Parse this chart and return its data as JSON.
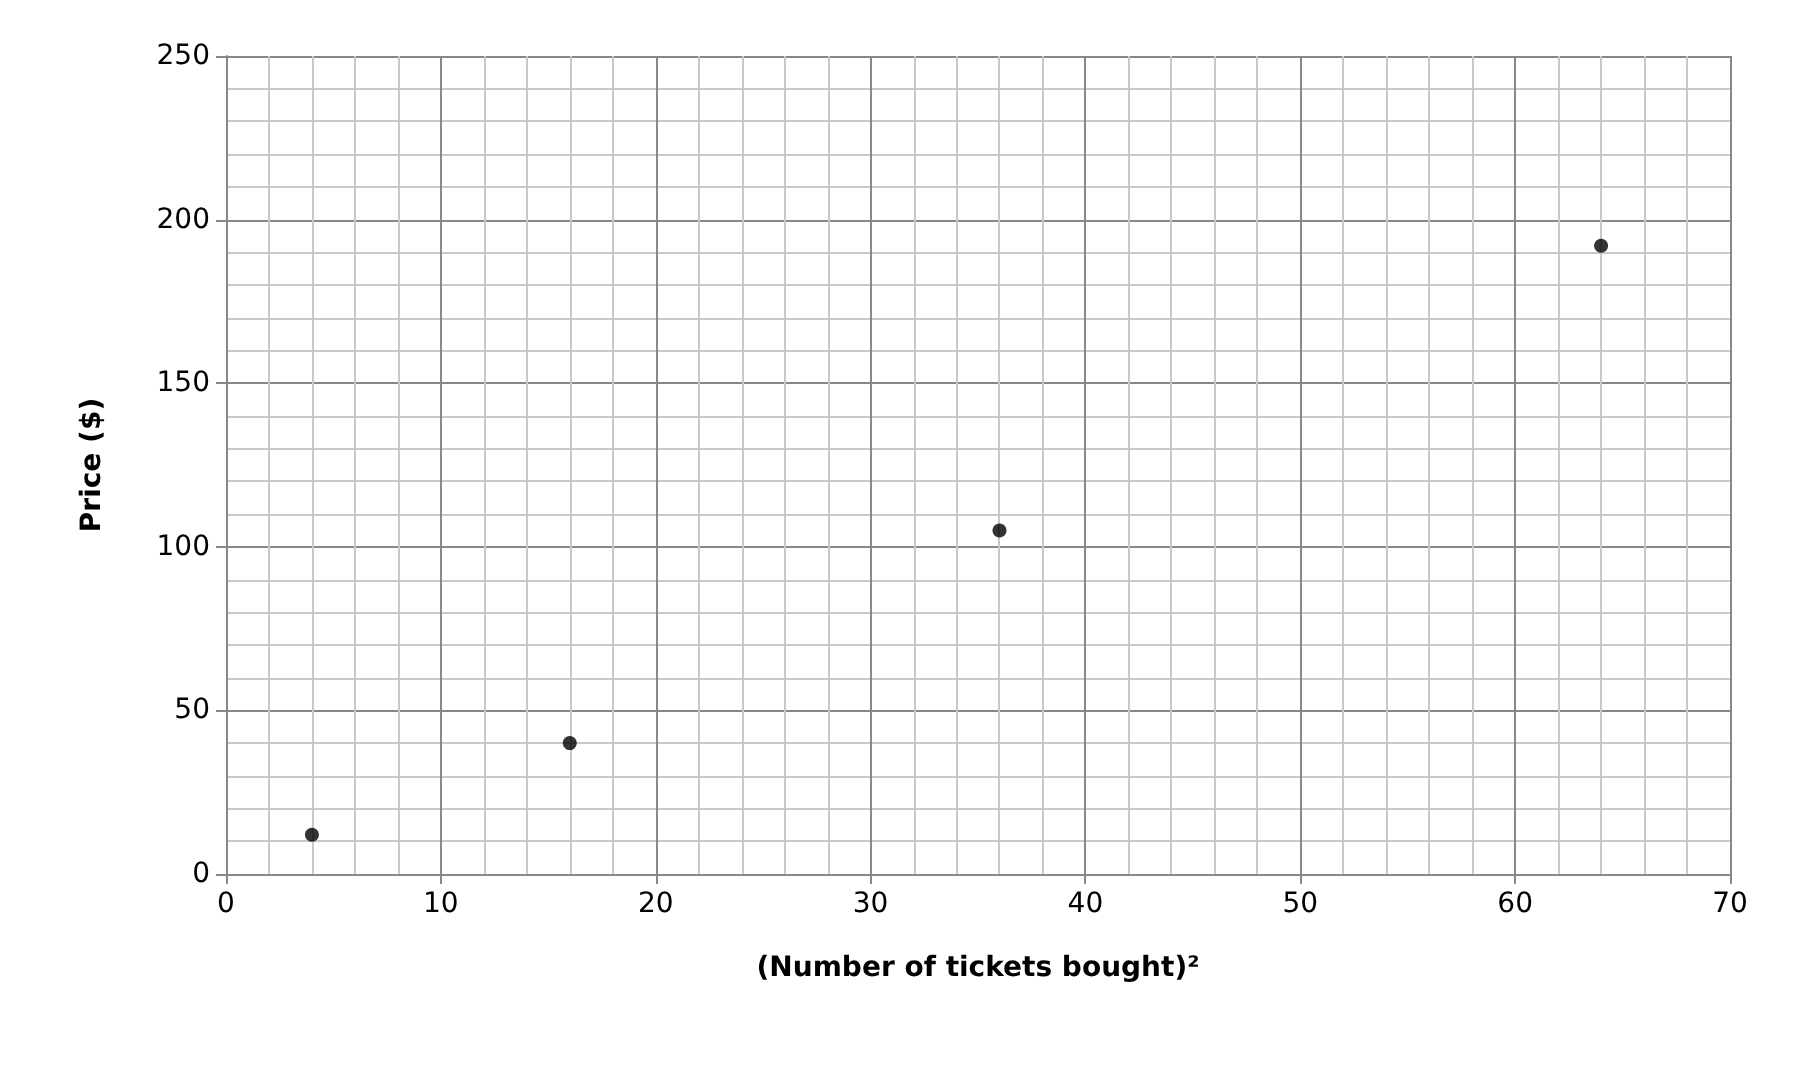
{
  "chart_data": {
    "type": "scatter",
    "xlabel": "(Number of tickets bought)²",
    "ylabel": "Price ($)",
    "x": [
      4,
      16,
      36,
      64
    ],
    "series": [
      {
        "color": "#000000",
        "values": [
          12,
          40,
          105,
          192
        ]
      }
    ],
    "xlim": [
      0,
      70
    ],
    "xticks": [
      0,
      10,
      20,
      30,
      40,
      50,
      60,
      70
    ],
    "ylim": [
      0,
      250
    ],
    "yticks": [
      0,
      50,
      100,
      150,
      200,
      250
    ],
    "grid": true,
    "marker": "circle"
  }
}
